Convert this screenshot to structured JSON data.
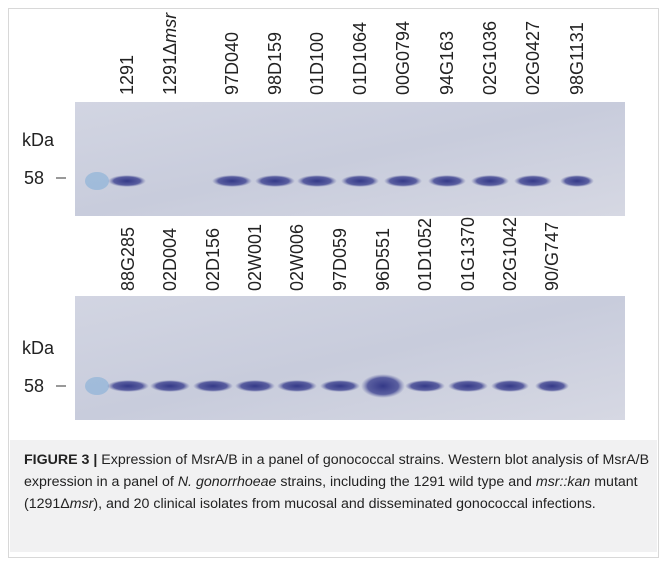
{
  "panels": [
    {
      "lanes": [
        {
          "text": "1291"
        },
        {
          "text": "1291Δ",
          "italic": "msr"
        },
        {
          "text": "97D040"
        },
        {
          "text": "98D159"
        },
        {
          "text": "01D100"
        },
        {
          "text": "01D1064"
        },
        {
          "text": "00G0794"
        },
        {
          "text": "94G163"
        },
        {
          "text": "02G1036"
        },
        {
          "text": "02G0427"
        },
        {
          "text": "98G1131"
        }
      ],
      "unit": "kDa",
      "marker": "58"
    },
    {
      "lanes": [
        {
          "text": "88G285"
        },
        {
          "text": "02D004"
        },
        {
          "text": "02D156"
        },
        {
          "text": "02W001"
        },
        {
          "text": "02W006"
        },
        {
          "text": "97D059"
        },
        {
          "text": "96D551"
        },
        {
          "text": "01D1052"
        },
        {
          "text": "01G1370"
        },
        {
          "text": "02G1042"
        },
        {
          "text": "90/G747"
        }
      ],
      "unit": "kDa",
      "marker": "58"
    }
  ],
  "caption": {
    "label": "FIGURE 3 |",
    "segments": [
      {
        "text": " Expression of MsrA/B in a panel of gonococcal strains. Western blot analysis of MsrA/B expression in a panel of ",
        "italic": false
      },
      {
        "text": "N. gonorrhoeae",
        "italic": true
      },
      {
        "text": " strains, including the 1291 wild type and ",
        "italic": false
      },
      {
        "text": "msr::kan",
        "italic": true
      },
      {
        "text": " mutant (1291Δ",
        "italic": false
      },
      {
        "text": "msr",
        "italic": true
      },
      {
        "text": "), and 20 clinical isolates from mucosal and disseminated gonococcal infections.",
        "italic": false
      }
    ]
  }
}
